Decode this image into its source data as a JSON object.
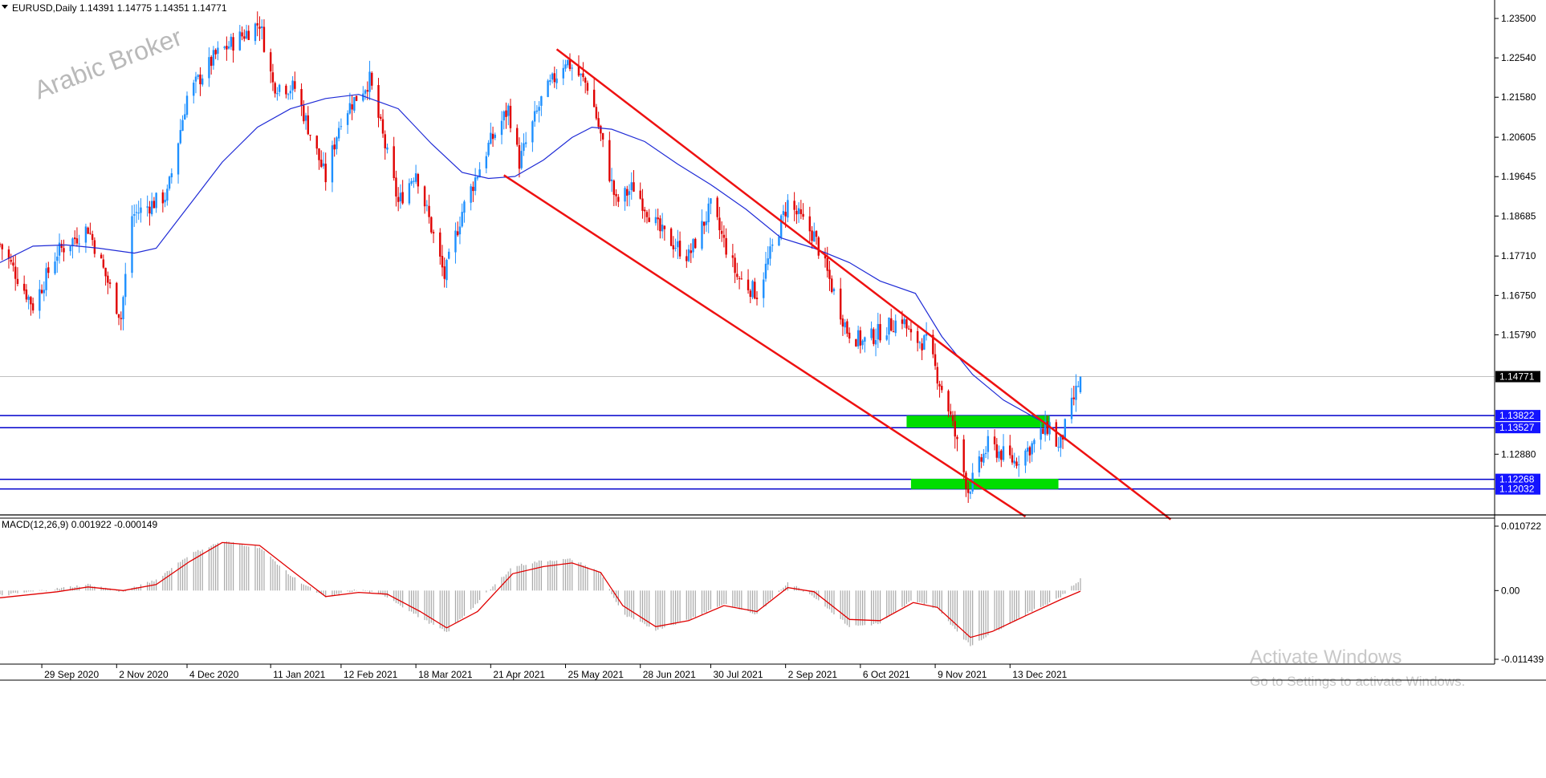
{
  "header": {
    "symbol_line": "EURUSD,Daily  1.14391 1.14775 1.14351 1.14771"
  },
  "watermark": "Arabic Broker",
  "windows_notice": {
    "title": "Activate Windows",
    "subtitle": "Go to Settings to activate Windows."
  },
  "colors": {
    "bull": "#1e90ff",
    "bear": "#e00000",
    "ma": "#1f2bd6",
    "channel": "#ee1111",
    "support_line": "#0000cc",
    "zone": "#00dd00",
    "macd_hist": "#a8a8a8",
    "macd_signal": "#e00000"
  },
  "chart_data": [
    {
      "type": "candlestick",
      "symbol": "EURUSD",
      "timeframe": "Daily",
      "last": {
        "open": 1.14391,
        "high": 1.14775,
        "low": 1.14351,
        "close": 1.14771
      },
      "y_tick_labels": [
        "1.23500",
        "1.22540",
        "1.21580",
        "1.20605",
        "1.19645",
        "1.18685",
        "1.17710",
        "1.16750",
        "1.15790",
        "1.12880"
      ],
      "ylim": [
        1.114,
        1.2395
      ],
      "x_tick_labels": [
        "29 Sep 2020",
        "2 Nov 2020",
        "4 Dec 2020",
        "11 Jan 2021",
        "12 Feb 2021",
        "18 Mar 2021",
        "21 Apr 2021",
        "25 May 2021",
        "28 Jun 2021",
        "30 Jul 2021",
        "2 Sep 2021",
        "6 Oct 2021",
        "9 Nov 2021",
        "13 Dec 2021"
      ],
      "price_tags": [
        {
          "label": "1.14771",
          "value": 1.14771,
          "style": "current"
        },
        {
          "label": "1.13822",
          "value": 1.13822,
          "style": "level"
        },
        {
          "label": "1.13527",
          "value": 1.13527,
          "style": "level"
        },
        {
          "label": "1.12268",
          "value": 1.12268,
          "style": "level"
        },
        {
          "label": "1.12032",
          "value": 1.12032,
          "style": "level"
        }
      ],
      "horizontal_levels": [
        1.13822,
        1.13527,
        1.12268,
        1.12032
      ],
      "zones": [
        {
          "x_range": [
            "2021-10-27",
            "2021-12-31"
          ],
          "y_range": [
            1.1353,
            1.1382
          ]
        },
        {
          "x_range": [
            "2021-10-29",
            "2022-01-04"
          ],
          "y_range": [
            1.1203,
            1.1228
          ]
        }
      ],
      "channel_lines": [
        {
          "from": [
            "2021-05-21",
            1.2275
          ],
          "to": [
            "2022-02-24",
            1.1129
          ]
        },
        {
          "from": [
            "2021-04-27",
            1.1968
          ],
          "to": [
            "2021-12-20",
            1.1136
          ]
        }
      ],
      "ma_points": [
        [
          "2020-09-10",
          1.1755
        ],
        [
          "2020-09-25",
          1.1795
        ],
        [
          "2020-10-10",
          1.1798
        ],
        [
          "2020-10-25",
          1.179
        ],
        [
          "2020-11-10",
          1.1778
        ],
        [
          "2020-11-20",
          1.179
        ],
        [
          "2020-12-05",
          1.1895
        ],
        [
          "2020-12-20",
          1.2
        ],
        [
          "2021-01-05",
          1.2085
        ],
        [
          "2021-01-20",
          1.213
        ],
        [
          "2021-02-05",
          1.2155
        ],
        [
          "2021-02-20",
          1.2165
        ],
        [
          "2021-03-10",
          1.213
        ],
        [
          "2021-03-25",
          1.2045
        ],
        [
          "2021-04-08",
          1.1975
        ],
        [
          "2021-04-20",
          1.196
        ],
        [
          "2021-05-02",
          1.1965
        ],
        [
          "2021-05-15",
          1.2005
        ],
        [
          "2021-05-28",
          1.206
        ],
        [
          "2021-06-06",
          1.2085
        ],
        [
          "2021-06-15",
          1.208
        ],
        [
          "2021-06-30",
          1.205
        ],
        [
          "2021-07-15",
          1.1995
        ],
        [
          "2021-07-30",
          1.1945
        ],
        [
          "2021-08-15",
          1.1885
        ],
        [
          "2021-08-31",
          1.1815
        ],
        [
          "2021-09-15",
          1.179
        ],
        [
          "2021-10-01",
          1.1755
        ],
        [
          "2021-10-15",
          1.171
        ],
        [
          "2021-10-31",
          1.168
        ],
        [
          "2021-11-12",
          1.1575
        ],
        [
          "2021-11-26",
          1.1482
        ],
        [
          "2021-12-10",
          1.142
        ],
        [
          "2021-12-25",
          1.1375
        ],
        [
          "2021-12-31",
          1.1358
        ]
      ],
      "price_path": [
        [
          "2020-09-10",
          1.18
        ],
        [
          "2020-09-25",
          1.165
        ],
        [
          "2020-10-06",
          1.178
        ],
        [
          "2020-10-20",
          1.184
        ],
        [
          "2020-11-04",
          1.162
        ],
        [
          "2020-11-09",
          1.187
        ],
        [
          "2020-11-25",
          1.192
        ],
        [
          "2020-12-04",
          1.216
        ],
        [
          "2020-12-17",
          1.226
        ],
        [
          "2021-01-06",
          1.234
        ],
        [
          "2021-01-12",
          1.219
        ],
        [
          "2021-01-22",
          1.218
        ],
        [
          "2021-02-05",
          1.196
        ],
        [
          "2021-02-12",
          1.211
        ],
        [
          "2021-02-25",
          1.22
        ],
        [
          "2021-03-10",
          1.19
        ],
        [
          "2021-03-18",
          1.198
        ],
        [
          "2021-03-31",
          1.172
        ],
        [
          "2021-04-08",
          1.188
        ],
        [
          "2021-04-20",
          1.204
        ],
        [
          "2021-04-29",
          1.213
        ],
        [
          "2021-05-04",
          1.2
        ],
        [
          "2021-05-14",
          1.215
        ],
        [
          "2021-05-25",
          1.225
        ],
        [
          "2021-06-05",
          1.218
        ],
        [
          "2021-06-17",
          1.19
        ],
        [
          "2021-06-25",
          1.194
        ],
        [
          "2021-07-07",
          1.183
        ],
        [
          "2021-07-20",
          1.177
        ],
        [
          "2021-07-30",
          1.189
        ],
        [
          "2021-08-11",
          1.172
        ],
        [
          "2021-08-20",
          1.168
        ],
        [
          "2021-09-03",
          1.19
        ],
        [
          "2021-09-15",
          1.182
        ],
        [
          "2021-09-30",
          1.159
        ],
        [
          "2021-10-07",
          1.156
        ],
        [
          "2021-10-25",
          1.162
        ],
        [
          "2021-10-29",
          1.157
        ],
        [
          "2021-11-05",
          1.156
        ],
        [
          "2021-11-15",
          1.14
        ],
        [
          "2021-11-24",
          1.12
        ],
        [
          "2021-12-03",
          1.131
        ],
        [
          "2021-12-15",
          1.127
        ],
        [
          "2021-12-23",
          1.131
        ],
        [
          "2021-12-31",
          1.136
        ],
        [
          "2022-01-04",
          1.13
        ],
        [
          "2022-01-12",
          1.144
        ],
        [
          "2022-01-14",
          1.1477
        ]
      ],
      "x_start": "2020-09-10",
      "x_end": "2022-01-14"
    },
    {
      "type": "bar",
      "title": "MACD(12,26,9) 0.001922 -0.000149",
      "indicator": "MACD",
      "params": [
        12,
        26,
        9
      ],
      "main_value": 0.001922,
      "signal_value": -0.000149,
      "y_tick_labels": [
        "0.010722",
        "0.00",
        "-0.011439"
      ],
      "ylim": [
        -0.011439,
        0.010722
      ],
      "histogram_path": [
        [
          "2020-09-10",
          -0.0008
        ],
        [
          "2020-10-06",
          0.0003
        ],
        [
          "2020-10-20",
          0.001
        ],
        [
          "2020-11-05",
          -0.0002
        ],
        [
          "2020-11-20",
          0.0018
        ],
        [
          "2020-12-05",
          0.006
        ],
        [
          "2020-12-20",
          0.0082
        ],
        [
          "2021-01-06",
          0.0072
        ],
        [
          "2021-01-20",
          0.0025
        ],
        [
          "2021-02-05",
          -0.0012
        ],
        [
          "2021-02-20",
          0.0002
        ],
        [
          "2021-03-05",
          -0.001
        ],
        [
          "2021-03-20",
          -0.0045
        ],
        [
          "2021-04-01",
          -0.007
        ],
        [
          "2021-04-15",
          -0.002
        ],
        [
          "2021-05-01",
          0.004
        ],
        [
          "2021-05-15",
          0.005
        ],
        [
          "2021-05-28",
          0.0052
        ],
        [
          "2021-06-10",
          0.003
        ],
        [
          "2021-06-20",
          -0.004
        ],
        [
          "2021-07-05",
          -0.0065
        ],
        [
          "2021-07-20",
          -0.0048
        ],
        [
          "2021-08-05",
          -0.0022
        ],
        [
          "2021-08-20",
          -0.004
        ],
        [
          "2021-09-03",
          0.0014
        ],
        [
          "2021-09-15",
          -0.001
        ],
        [
          "2021-10-01",
          -0.006
        ],
        [
          "2021-10-15",
          -0.0055
        ],
        [
          "2021-10-30",
          -0.0015
        ],
        [
          "2021-11-10",
          -0.003
        ],
        [
          "2021-11-25",
          -0.0092
        ],
        [
          "2021-12-05",
          -0.007
        ],
        [
          "2021-12-20",
          -0.004
        ],
        [
          "2022-01-05",
          -0.001
        ],
        [
          "2022-01-14",
          0.0019
        ]
      ],
      "signal_path": [
        [
          "2020-09-10",
          -0.0012
        ],
        [
          "2020-10-06",
          -0.0002
        ],
        [
          "2020-10-20",
          0.0006
        ],
        [
          "2020-11-05",
          0.0
        ],
        [
          "2020-11-20",
          0.001
        ],
        [
          "2020-12-05",
          0.0048
        ],
        [
          "2020-12-20",
          0.008
        ],
        [
          "2021-01-06",
          0.0075
        ],
        [
          "2021-01-20",
          0.0035
        ],
        [
          "2021-02-05",
          -0.001
        ],
        [
          "2021-02-20",
          -0.0003
        ],
        [
          "2021-03-05",
          -0.0006
        ],
        [
          "2021-03-20",
          -0.0035
        ],
        [
          "2021-04-01",
          -0.0062
        ],
        [
          "2021-04-15",
          -0.0035
        ],
        [
          "2021-05-01",
          0.0028
        ],
        [
          "2021-05-15",
          0.004
        ],
        [
          "2021-05-28",
          0.0046
        ],
        [
          "2021-06-10",
          0.003
        ],
        [
          "2021-06-20",
          -0.0025
        ],
        [
          "2021-07-05",
          -0.006
        ],
        [
          "2021-07-20",
          -0.005
        ],
        [
          "2021-08-05",
          -0.0025
        ],
        [
          "2021-08-20",
          -0.0035
        ],
        [
          "2021-09-03",
          0.0005
        ],
        [
          "2021-09-15",
          -0.0002
        ],
        [
          "2021-10-01",
          -0.0048
        ],
        [
          "2021-10-15",
          -0.005
        ],
        [
          "2021-10-30",
          -0.002
        ],
        [
          "2021-11-10",
          -0.0028
        ],
        [
          "2021-11-25",
          -0.0078
        ],
        [
          "2021-12-05",
          -0.0068
        ],
        [
          "2021-12-20",
          -0.0042
        ],
        [
          "2022-01-05",
          -0.0015
        ],
        [
          "2022-01-14",
          -0.0001
        ]
      ]
    }
  ]
}
